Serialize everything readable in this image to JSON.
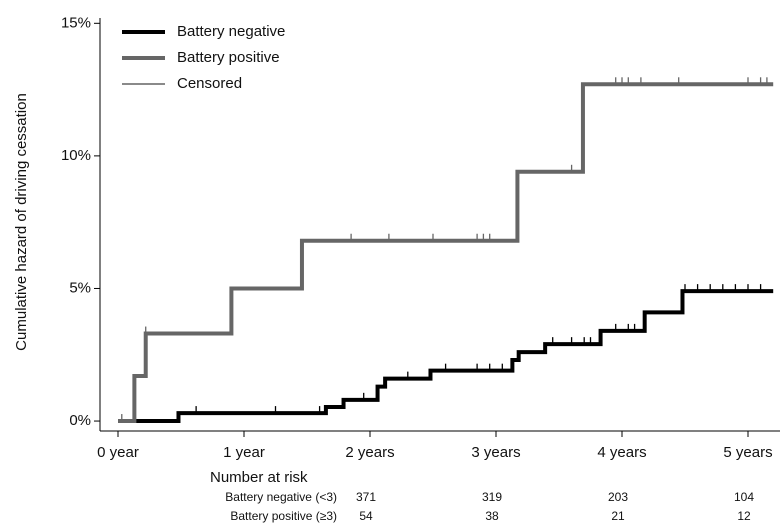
{
  "chart_data": {
    "type": "step",
    "ylabel": "Cumulative hazard of driving cessation",
    "xlim": [
      0,
      5.25
    ],
    "ylim": [
      -0.3,
      15.2
    ],
    "xticks": [
      {
        "value": 0,
        "label": "0 year"
      },
      {
        "value": 1,
        "label": "1 year"
      },
      {
        "value": 2,
        "label": "2 years"
      },
      {
        "value": 3,
        "label": "3 years"
      },
      {
        "value": 4,
        "label": "4 years"
      },
      {
        "value": 5,
        "label": "5 years"
      }
    ],
    "yticks": [
      {
        "value": 0,
        "label": "0%"
      },
      {
        "value": 5,
        "label": "5%"
      },
      {
        "value": 10,
        "label": "10%"
      },
      {
        "value": 15,
        "label": "15%"
      }
    ],
    "legend": "top-left",
    "series": [
      {
        "name": "Battery negative",
        "color": "#000000",
        "x": [
          0,
          0.48,
          1.65,
          1.79,
          2.06,
          2.12,
          2.48,
          3.13,
          3.18,
          3.39,
          3.83,
          4.18,
          4.48,
          5.2
        ],
        "values": [
          0,
          0.3,
          0.53,
          0.8,
          1.3,
          1.6,
          1.9,
          2.3,
          2.6,
          2.9,
          3.4,
          4.1,
          4.9,
          4.9
        ],
        "censored": [
          0.62,
          1.25,
          1.6,
          1.95,
          2.3,
          2.6,
          2.85,
          2.95,
          3.05,
          3.45,
          3.6,
          3.7,
          3.75,
          3.95,
          4.05,
          4.1,
          4.5,
          4.6,
          4.7,
          4.8,
          4.9,
          5.0,
          5.1
        ]
      },
      {
        "name": "Battery positive",
        "color": "#666666",
        "x": [
          0,
          0.13,
          0.22,
          0.9,
          1.46,
          3.17,
          3.69,
          5.2
        ],
        "values": [
          0,
          1.7,
          3.3,
          5.0,
          6.8,
          9.4,
          12.7,
          12.7
        ],
        "censored": [
          0.03,
          0.22,
          1.85,
          2.15,
          2.5,
          2.85,
          2.9,
          2.95,
          3.6,
          3.95,
          4.0,
          4.05,
          4.15,
          4.45,
          5.0,
          5.1,
          5.15
        ]
      }
    ],
    "censored_label": "Censored",
    "risk_table": {
      "title": "Number at risk",
      "rows": [
        {
          "label": "Battery negative (<3)",
          "values": [
            371,
            319,
            203,
            104
          ]
        },
        {
          "label": "Battery positive (≥3)",
          "values": [
            54,
            38,
            21,
            12
          ]
        }
      ]
    }
  }
}
